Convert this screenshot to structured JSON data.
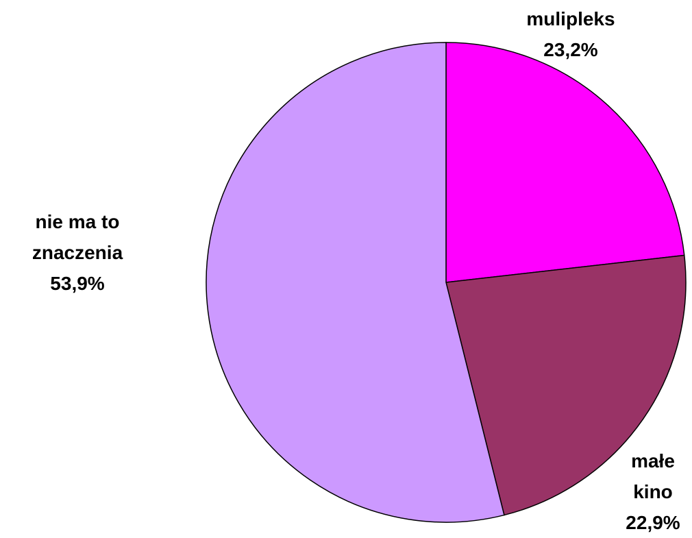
{
  "chart_data": {
    "type": "pie",
    "categories": [
      "mulipleks",
      "małe\nkino",
      "nie ma to\nznaczenia"
    ],
    "values": [
      23.2,
      22.9,
      53.9
    ],
    "value_labels": [
      "23,2%",
      "22,9%",
      "53,9%"
    ],
    "colors": [
      "#ff00ff",
      "#993366",
      "#cc99ff"
    ]
  }
}
